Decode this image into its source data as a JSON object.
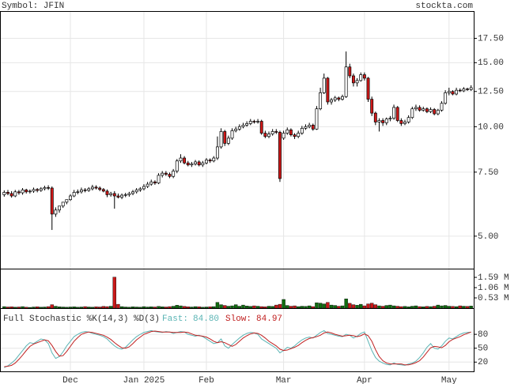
{
  "chart_data": [
    {
      "type": "candlestick",
      "title": "Symbol: JFIN",
      "source": "stockta.com",
      "categories": [
        null,
        null,
        null,
        null,
        null,
        null,
        null,
        null,
        null,
        null,
        null,
        null,
        null,
        null,
        null,
        null,
        null,
        null,
        "Dec",
        null,
        null,
        null,
        null,
        null,
        null,
        null,
        null,
        null,
        null,
        null,
        null,
        null,
        null,
        null,
        null,
        null,
        null,
        null,
        "Jan 2025",
        null,
        null,
        null,
        null,
        null,
        null,
        null,
        null,
        null,
        null,
        null,
        null,
        null,
        null,
        null,
        null,
        "Feb",
        null,
        null,
        null,
        null,
        null,
        null,
        null,
        null,
        null,
        null,
        null,
        null,
        null,
        null,
        null,
        null,
        null,
        null,
        null,
        null,
        "Mar",
        null,
        null,
        null,
        null,
        null,
        null,
        null,
        null,
        null,
        null,
        null,
        null,
        null,
        null,
        null,
        null,
        null,
        null,
        null,
        null,
        null,
        "Apr",
        null,
        null,
        null,
        null,
        null,
        null,
        null,
        null,
        null,
        null,
        null,
        null,
        null,
        null,
        null,
        null,
        null,
        null,
        null,
        null,
        null,
        null,
        "May",
        null,
        null,
        null,
        null,
        null,
        null
      ],
      "open": [
        6.5,
        6.6,
        6.55,
        6.45,
        6.62,
        6.58,
        6.7,
        6.62,
        6.65,
        6.72,
        6.68,
        6.75,
        6.8,
        6.78,
        5.75,
        5.9,
        6.05,
        6.2,
        6.3,
        6.45,
        6.6,
        6.62,
        6.7,
        6.68,
        6.75,
        6.82,
        6.78,
        6.72,
        6.65,
        6.5,
        6.55,
        6.45,
        6.4,
        6.48,
        6.5,
        6.55,
        6.62,
        6.7,
        6.75,
        6.85,
        6.95,
        7.05,
        7.0,
        7.35,
        7.45,
        7.4,
        7.3,
        7.55,
        8.05,
        8.2,
        7.95,
        7.85,
        7.9,
        8.0,
        7.85,
        7.95,
        8.1,
        8.05,
        8.2,
        8.8,
        9.7,
        9.0,
        9.3,
        9.75,
        9.85,
        10.0,
        10.1,
        10.2,
        10.35,
        10.3,
        10.35,
        9.6,
        9.4,
        9.55,
        9.7,
        9.65,
        9.3,
        9.6,
        9.8,
        9.5,
        9.4,
        9.6,
        9.9,
        10.0,
        10.1,
        9.85,
        11.2,
        12.4,
        13.6,
        11.7,
        11.85,
        12.0,
        11.9,
        12.1,
        14.6,
        13.8,
        13.2,
        13.4,
        13.9,
        13.6,
        11.9,
        10.9,
        10.3,
        10.4,
        10.25,
        10.5,
        10.55,
        11.3,
        10.4,
        10.2,
        10.3,
        10.6,
        11.2,
        11.3,
        11.1,
        11.2,
        11.0,
        11.15,
        10.85,
        11.1,
        11.6,
        12.4,
        12.5,
        12.3,
        12.6,
        12.55,
        12.7,
        12.65
      ],
      "high": [
        6.68,
        6.7,
        6.65,
        6.7,
        6.7,
        6.78,
        6.75,
        6.72,
        6.8,
        6.78,
        6.82,
        6.88,
        6.9,
        6.85,
        6.0,
        6.0,
        6.15,
        6.3,
        6.52,
        6.7,
        6.72,
        6.8,
        6.78,
        6.82,
        6.92,
        6.9,
        6.85,
        6.78,
        6.72,
        6.62,
        6.65,
        6.55,
        6.55,
        6.58,
        6.62,
        6.7,
        6.78,
        6.82,
        6.95,
        7.05,
        7.15,
        7.12,
        7.45,
        7.55,
        7.55,
        7.48,
        7.65,
        8.15,
        8.4,
        8.3,
        8.05,
        8.0,
        8.1,
        8.08,
        8.05,
        8.2,
        8.18,
        8.3,
        9.4,
        9.9,
        9.8,
        9.45,
        9.9,
        10.0,
        10.15,
        10.25,
        10.35,
        10.5,
        10.45,
        10.5,
        10.45,
        9.75,
        9.7,
        9.85,
        9.85,
        9.75,
        9.75,
        9.95,
        9.9,
        9.6,
        9.75,
        10.05,
        10.15,
        10.25,
        10.2,
        11.4,
        12.8,
        14.0,
        13.7,
        12.0,
        12.15,
        12.1,
        12.25,
        16.1,
        14.9,
        14.0,
        13.6,
        14.1,
        14.1,
        13.7,
        12.1,
        11.0,
        10.55,
        10.55,
        10.6,
        10.7,
        11.5,
        11.4,
        10.55,
        10.45,
        10.75,
        11.35,
        11.5,
        11.45,
        11.35,
        11.3,
        11.3,
        11.25,
        11.2,
        11.75,
        12.6,
        12.8,
        12.6,
        12.8,
        12.75,
        12.85,
        12.8,
        13.0
      ],
      "low": [
        6.42,
        6.48,
        6.38,
        6.4,
        6.5,
        6.5,
        6.55,
        6.55,
        6.58,
        6.6,
        6.62,
        6.68,
        6.7,
        5.2,
        5.65,
        5.8,
        5.98,
        6.12,
        6.25,
        6.4,
        6.52,
        6.55,
        6.6,
        6.62,
        6.68,
        6.72,
        6.65,
        6.6,
        6.4,
        6.42,
        5.95,
        6.35,
        6.32,
        6.4,
        6.42,
        6.48,
        6.55,
        6.62,
        6.68,
        6.78,
        6.88,
        6.92,
        6.95,
        7.25,
        7.32,
        7.22,
        7.22,
        7.45,
        7.95,
        7.88,
        7.78,
        7.75,
        7.82,
        7.78,
        7.75,
        7.88,
        7.95,
        7.98,
        8.1,
        8.7,
        8.85,
        8.9,
        9.2,
        9.65,
        9.75,
        9.9,
        10.0,
        10.1,
        10.2,
        10.2,
        9.5,
        9.3,
        9.3,
        9.45,
        9.55,
        7.05,
        9.2,
        9.5,
        9.4,
        9.25,
        9.3,
        9.5,
        9.8,
        9.9,
        9.75,
        9.8,
        11.1,
        12.3,
        11.5,
        11.5,
        11.7,
        11.75,
        11.8,
        12.0,
        13.6,
        12.9,
        12.9,
        13.3,
        13.4,
        11.7,
        10.7,
        10.1,
        9.7,
        10.05,
        10.1,
        10.35,
        10.45,
        10.3,
        10.05,
        10.1,
        10.2,
        10.5,
        11.05,
        11.0,
        11.0,
        10.9,
        10.9,
        10.75,
        10.75,
        11.0,
        11.5,
        12.2,
        12.2,
        12.2,
        12.45,
        12.45,
        12.55,
        12.55
      ],
      "close": [
        6.6,
        6.55,
        6.45,
        6.62,
        6.58,
        6.7,
        6.62,
        6.65,
        6.72,
        6.68,
        6.75,
        6.8,
        6.78,
        5.75,
        5.9,
        6.05,
        6.2,
        6.3,
        6.45,
        6.6,
        6.62,
        6.7,
        6.68,
        6.75,
        6.82,
        6.78,
        6.72,
        6.65,
        6.5,
        6.55,
        6.45,
        6.4,
        6.48,
        6.5,
        6.55,
        6.62,
        6.7,
        6.75,
        6.85,
        6.95,
        7.05,
        7.0,
        7.35,
        7.45,
        7.4,
        7.3,
        7.55,
        8.05,
        8.2,
        7.95,
        7.85,
        7.9,
        8.0,
        7.85,
        7.95,
        8.1,
        8.05,
        8.2,
        8.8,
        9.7,
        9.0,
        9.3,
        9.75,
        9.85,
        10.0,
        10.1,
        10.2,
        10.35,
        10.3,
        10.35,
        9.6,
        9.4,
        9.55,
        9.7,
        9.65,
        7.2,
        9.6,
        9.8,
        9.5,
        9.4,
        9.6,
        9.9,
        10.0,
        10.1,
        9.85,
        11.2,
        12.4,
        13.6,
        11.7,
        11.85,
        12.0,
        11.9,
        12.1,
        14.6,
        13.8,
        13.2,
        13.4,
        13.9,
        13.6,
        11.9,
        10.9,
        10.3,
        10.4,
        10.25,
        10.5,
        10.55,
        11.3,
        10.4,
        10.2,
        10.3,
        10.6,
        11.2,
        11.3,
        11.1,
        11.2,
        11.0,
        11.15,
        10.85,
        11.1,
        11.6,
        12.4,
        12.5,
        12.3,
        12.6,
        12.55,
        12.7,
        12.65,
        12.8
      ],
      "ylim": [
        4.07,
        20.8
      ],
      "log_scale": true,
      "yticks": [
        {
          "value": 5,
          "label": "5.00"
        },
        {
          "value": 7.5,
          "label": "7.50"
        },
        {
          "value": 10,
          "label": "10.00"
        },
        {
          "value": 12.5,
          "label": "12.50"
        },
        {
          "value": 15,
          "label": "15.00"
        },
        {
          "value": 17.5,
          "label": "17.50"
        }
      ],
      "grid": true,
      "up_color": "#ffffff",
      "down_color": "#d01818"
    },
    {
      "type": "bar",
      "values": [
        0.08,
        0.06,
        0.07,
        0.05,
        0.06,
        0.08,
        0.05,
        0.04,
        0.06,
        0.07,
        0.05,
        0.06,
        0.08,
        0.18,
        0.1,
        0.07,
        0.06,
        0.05,
        0.06,
        0.07,
        0.05,
        0.06,
        0.08,
        0.06,
        0.05,
        0.07,
        0.06,
        0.09,
        0.08,
        0.1,
        1.6,
        0.2,
        0.08,
        0.06,
        0.05,
        0.07,
        0.06,
        0.05,
        0.08,
        0.06,
        0.07,
        0.06,
        0.09,
        0.07,
        0.06,
        0.08,
        0.1,
        0.15,
        0.12,
        0.09,
        0.07,
        0.06,
        0.08,
        0.07,
        0.05,
        0.06,
        0.07,
        0.08,
        0.3,
        0.18,
        0.14,
        0.1,
        0.12,
        0.18,
        0.1,
        0.16,
        0.11,
        0.09,
        0.12,
        0.1,
        0.08,
        0.07,
        0.1,
        0.09,
        0.16,
        0.2,
        0.45,
        0.14,
        0.1,
        0.12,
        0.08,
        0.1,
        0.09,
        0.12,
        0.08,
        0.28,
        0.26,
        0.22,
        0.3,
        0.16,
        0.14,
        0.1,
        0.12,
        0.48,
        0.25,
        0.18,
        0.15,
        0.2,
        0.12,
        0.22,
        0.26,
        0.18,
        0.12,
        0.1,
        0.14,
        0.16,
        0.12,
        0.1,
        0.08,
        0.09,
        0.07,
        0.1,
        0.12,
        0.08,
        0.07,
        0.09,
        0.08,
        0.1,
        0.16,
        0.12,
        0.14,
        0.1,
        0.09,
        0.08,
        0.12,
        0.1,
        0.09,
        0.11
      ],
      "ylim": [
        0,
        2.0
      ],
      "yticks": [
        {
          "value": 0.53,
          "label": "0.53 M"
        },
        {
          "value": 1.06,
          "label": "1.06 M"
        },
        {
          "value": 1.59,
          "label": "1.59 M"
        }
      ],
      "up_color": "#106e10",
      "down_color": "#c81818"
    },
    {
      "type": "line",
      "title": "Full Stochastic %K(14,3) %D(3)",
      "series": [
        {
          "name": "Fast:",
          "color": "#5ab4b4",
          "value_label": "84.80",
          "values": [
            8,
            12,
            18,
            25,
            35,
            45,
            55,
            62,
            60,
            65,
            70,
            68,
            60,
            40,
            28,
            32,
            42,
            55,
            65,
            75,
            80,
            84,
            86,
            85,
            82,
            80,
            78,
            75,
            70,
            62,
            55,
            50,
            48,
            52,
            60,
            68,
            75,
            80,
            84,
            86,
            88,
            86,
            85,
            84,
            86,
            85,
            82,
            84,
            86,
            85,
            80,
            78,
            76,
            78,
            75,
            70,
            65,
            60,
            62,
            70,
            55,
            50,
            58,
            65,
            72,
            78,
            82,
            84,
            83,
            80,
            70,
            65,
            60,
            55,
            50,
            40,
            45,
            52,
            50,
            55,
            62,
            68,
            72,
            74,
            72,
            78,
            84,
            88,
            82,
            80,
            78,
            76,
            75,
            80,
            78,
            72,
            76,
            82,
            85,
            65,
            45,
            30,
            22,
            18,
            15,
            14,
            18,
            15,
            14,
            13,
            16,
            18,
            22,
            30,
            40,
            52,
            60,
            50,
            48,
            55,
            65,
            72,
            70,
            75,
            80,
            83,
            84,
            84.8
          ]
        },
        {
          "name": "Slow:",
          "color": "#c02020",
          "value_label": "84.97",
          "values": [
            10,
            11,
            13,
            18,
            26,
            35,
            45,
            54,
            59,
            62,
            65,
            68,
            66,
            56,
            43,
            33,
            34,
            43,
            54,
            65,
            73,
            80,
            83,
            85,
            84,
            82,
            80,
            78,
            74,
            69,
            62,
            56,
            51,
            50,
            53,
            60,
            68,
            74,
            80,
            83,
            86,
            87,
            86,
            85,
            85,
            85,
            84,
            84,
            84,
            85,
            84,
            81,
            78,
            77,
            76,
            74,
            70,
            65,
            62,
            64,
            62,
            58,
            54,
            58,
            65,
            72,
            77,
            81,
            83,
            82,
            78,
            72,
            65,
            60,
            55,
            48,
            45,
            46,
            49,
            52,
            56,
            62,
            67,
            71,
            73,
            75,
            78,
            83,
            85,
            83,
            80,
            78,
            76,
            77,
            78,
            77,
            75,
            77,
            81,
            77,
            65,
            47,
            32,
            23,
            18,
            16,
            16,
            16,
            16,
            14,
            14,
            16,
            19,
            23,
            31,
            41,
            51,
            54,
            53,
            51,
            56,
            64,
            69,
            72,
            75,
            79,
            82,
            84.97
          ]
        }
      ],
      "ylim": [
        0,
        128
      ],
      "yticks": [
        20,
        50,
        80
      ],
      "grid": true
    }
  ]
}
